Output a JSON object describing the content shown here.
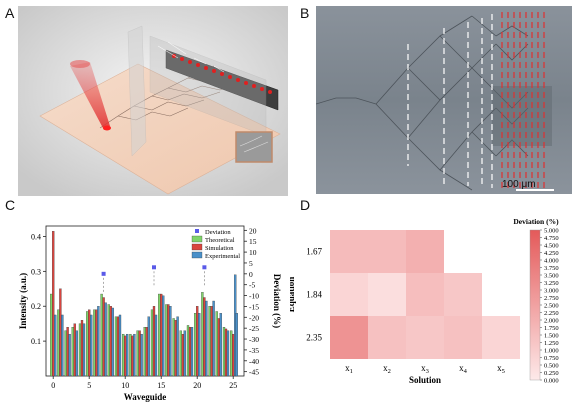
{
  "panels": {
    "a": {
      "letter": "A"
    },
    "b": {
      "letter": "B",
      "scale_bar": "100 μm"
    },
    "c": {
      "letter": "C"
    },
    "d": {
      "letter": "D"
    }
  },
  "chart_data": [
    {
      "panel": "C",
      "type": "bar",
      "xlabel": "Waveguide",
      "ylabel": "Intensity (a.u.)",
      "y2label": "Deviation (%)",
      "xlim": [
        -1,
        26.5
      ],
      "ylim": [
        0,
        0.43
      ],
      "y2lim": [
        -47,
        22
      ],
      "xticks": [
        0,
        5,
        10,
        15,
        20,
        25
      ],
      "yticks": [
        0.1,
        0.2,
        0.3,
        0.4
      ],
      "y2ticks": [
        20,
        15,
        10,
        5,
        0,
        -5,
        -10,
        -15,
        -20,
        -25,
        -30,
        -35,
        -40,
        -45
      ],
      "legend": [
        "Deviation",
        "Theoretical",
        "Simulation",
        "Experimental"
      ],
      "legend_position": "top-right",
      "colors": {
        "theoretical": "#7fd36a",
        "simulation": "#d9453f",
        "experimental": "#4a90c9",
        "deviation": "#5a5ae8"
      },
      "categories": [
        0,
        1,
        2,
        3,
        4,
        5,
        6,
        7,
        8,
        9,
        10,
        11,
        12,
        13,
        14,
        15,
        16,
        17,
        18,
        19,
        20,
        21,
        22,
        23,
        24,
        25
      ],
      "series": [
        {
          "name": "Theoretical",
          "values": [
            0.235,
            0.19,
            0.13,
            0.14,
            0.15,
            0.185,
            0.19,
            0.235,
            0.205,
            0.17,
            0.12,
            0.12,
            0.13,
            0.14,
            0.19,
            0.235,
            0.205,
            0.165,
            0.13,
            0.145,
            0.18,
            0.24,
            0.2,
            0.185,
            0.14,
            0.13
          ]
        },
        {
          "name": "Simulation",
          "values": [
            0.415,
            0.25,
            0.14,
            0.15,
            0.16,
            0.19,
            0.19,
            0.225,
            0.2,
            0.17,
            0.115,
            0.115,
            0.13,
            0.14,
            0.2,
            0.235,
            0.205,
            0.16,
            0.12,
            0.14,
            0.2,
            0.225,
            0.2,
            0.165,
            0.135,
            0.12
          ]
        },
        {
          "name": "Experimental",
          "values": [
            0.175,
            0.175,
            0.12,
            0.13,
            0.15,
            0.175,
            0.2,
            0.21,
            0.195,
            0.175,
            0.12,
            0.12,
            0.12,
            0.17,
            0.175,
            0.23,
            0.2,
            0.17,
            0.13,
            0.14,
            0.18,
            0.215,
            0.215,
            0.18,
            0.13,
            0.29
          ]
        }
      ],
      "extra_bar": {
        "x": 25.5,
        "series": "Experimental",
        "value": 0.18
      },
      "deviation_points": [
        {
          "x": 7,
          "y": 0
        },
        {
          "x": 14,
          "y": 3
        },
        {
          "x": 21,
          "y": 3
        }
      ]
    },
    {
      "panel": "D",
      "type": "heatmap",
      "xlabel": "Solution",
      "ylabel": "Equation",
      "colorbar_label": "Deviation (%)",
      "x": [
        "x1",
        "x2",
        "x3",
        "x4",
        "x5"
      ],
      "y": [
        "1.67",
        "1.84",
        "2.35"
      ],
      "values": [
        [
          1.6,
          1.6,
          2.0,
          null,
          null
        ],
        [
          0.7,
          0.4,
          1.5,
          1.2,
          null
        ],
        [
          3.0,
          1.4,
          1.2,
          1.4,
          0.7
        ]
      ],
      "vmin": 0,
      "vmax": 5,
      "colorbar_ticks": [
        "5.000",
        "4.750",
        "4.500",
        "4.250",
        "4.000",
        "3.750",
        "3.500",
        "3.250",
        "3.000",
        "2.750",
        "2.500",
        "2.250",
        "2.000",
        "1.750",
        "1.500",
        "1.250",
        "1.000",
        "0.750",
        "0.500",
        "0.250",
        "0.000"
      ],
      "colormap": [
        "#fde9e9",
        "#e45a5a"
      ]
    }
  ]
}
